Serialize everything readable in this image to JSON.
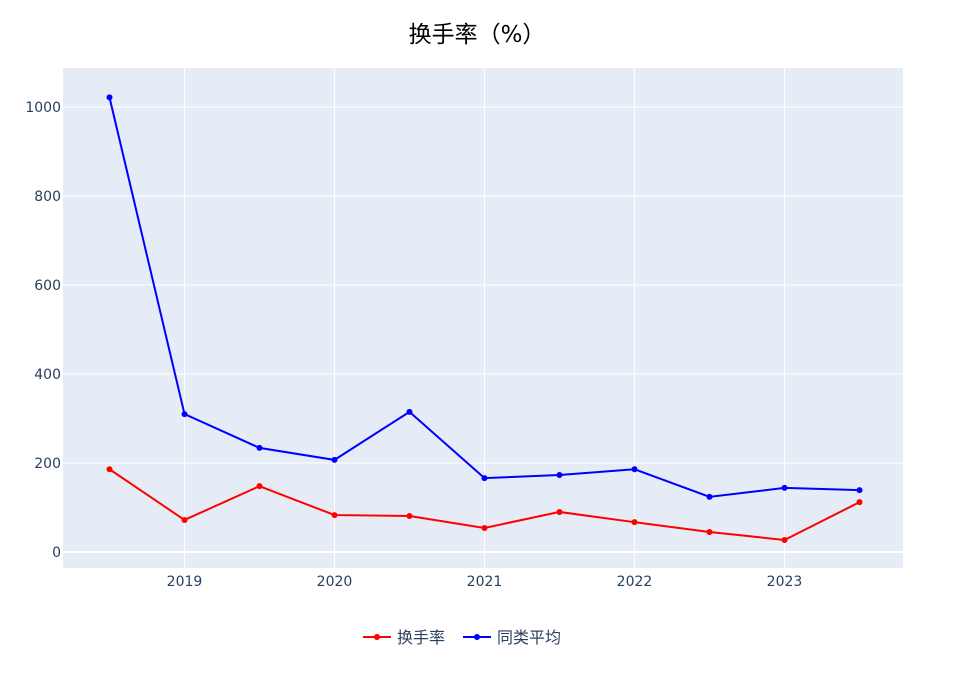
{
  "chart_data": {
    "type": "line",
    "title": "换手率（%）",
    "xlabel": "",
    "ylabel": "",
    "x": [
      2018.5,
      2019.0,
      2019.5,
      2020.0,
      2020.5,
      2021.0,
      2021.5,
      2022.0,
      2022.5,
      2023.0,
      2023.5
    ],
    "xticks": [
      2019,
      2020,
      2021,
      2022,
      2023
    ],
    "xtick_labels": [
      "2019",
      "2020",
      "2021",
      "2022",
      "2023"
    ],
    "yticks": [
      0,
      200,
      400,
      600,
      800,
      1000
    ],
    "ytick_labels": [
      "0",
      "200",
      "400",
      "600",
      "800",
      "1000"
    ],
    "xlim": [
      2018.19,
      2023.79
    ],
    "ylim": [
      -36,
      1088
    ],
    "grid": true,
    "legend_position": "bottom-center",
    "series": [
      {
        "name": "换手率",
        "color": "#ff0000",
        "values": [
          186,
          72,
          148,
          83,
          81,
          54,
          90,
          67,
          45,
          27,
          112
        ]
      },
      {
        "name": "同类平均",
        "color": "#0000ff",
        "values": [
          1022,
          310,
          234,
          207,
          315,
          166,
          173,
          186,
          124,
          144,
          139
        ]
      }
    ]
  }
}
